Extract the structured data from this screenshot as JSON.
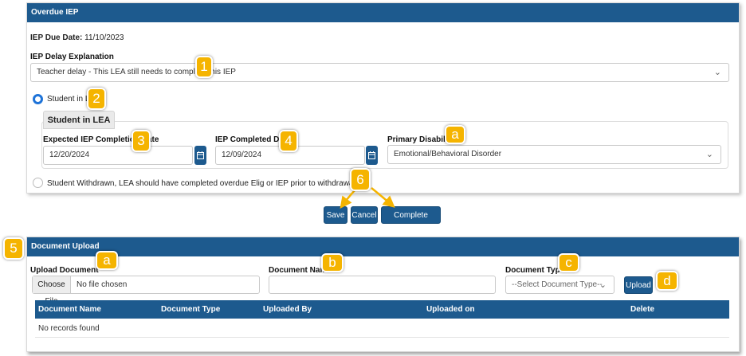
{
  "overdue_panel": {
    "title": "Overdue IEP",
    "due_date_label": "IEP Due Date:",
    "due_date_value": "11/10/2023",
    "delay_label": "IEP Delay Explanation",
    "delay_value": "Teacher delay - This LEA still needs to complete this IEP",
    "radio_student_in_lea": "Student in LEA",
    "sub_tab": "Student in LEA",
    "expected_label": "Expected IEP Completion Date",
    "expected_value": "12/20/2024",
    "completed_label": "IEP Completed Date",
    "completed_value": "12/09/2024",
    "disability_label": "Primary Disability",
    "disability_value": "Emotional/Behavioral Disorder",
    "radio_withdrawn": "Student Withdrawn, LEA should have completed overdue Elig or IEP prior to withdrawal"
  },
  "actions": {
    "save": "Save",
    "cancel": "Cancel",
    "complete": "Complete Process"
  },
  "upload_panel": {
    "title": "Document Upload",
    "upload_label": "Upload Document",
    "choose_file": "Choose File",
    "no_file": "No file chosen",
    "doc_name_label": "Document Name",
    "doc_type_label": "Document Type",
    "doc_type_placeholder": "--Select Document Type--",
    "upload_button": "Upload",
    "table": {
      "columns": [
        "Document Name",
        "Document Type",
        "Uploaded By",
        "Uploaded on",
        "Delete"
      ],
      "empty": "No records found"
    }
  },
  "callouts": {
    "c1": "1",
    "c2": "2",
    "c3": "3",
    "c4": "4",
    "ca1": "a",
    "c6": "6",
    "c5": "5",
    "ca2": "a",
    "cb": "b",
    "cc": "c",
    "cd": "d"
  },
  "colors": {
    "header_blue": "#1d5a8e",
    "callout_yellow": "#f5b400",
    "radio_blue": "#1e73d8"
  }
}
